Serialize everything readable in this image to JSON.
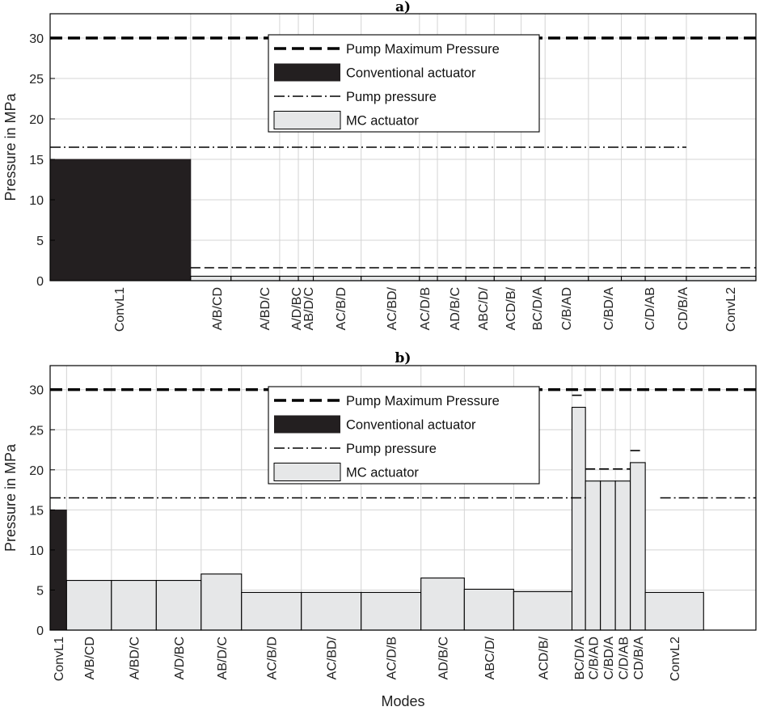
{
  "chart_data": [
    {
      "type": "bar",
      "title": "a)",
      "ylabel": "Pressure in MPa",
      "xlabel": "",
      "ylim": [
        0,
        33
      ],
      "yticks": [
        0,
        5,
        10,
        15,
        20,
        25,
        30
      ],
      "grid": true,
      "legend": {
        "placement": "top-center",
        "entries": [
          "Pump Maximum Pressure",
          "Conventional actuator",
          "Pump pressure",
          "MC actuator"
        ]
      },
      "colors": {
        "conventional": "#231f20",
        "mc": "#e6e7e8",
        "line": "#000000",
        "grid": "#d4d4d4"
      },
      "pump_maximum_pressure": 30,
      "pump_pressure": [
        {
          "x0": 0,
          "x1": 42.55,
          "y": 16.5
        }
      ],
      "categories": [
        "ConvL1",
        "A/B/CD",
        "A/BD/C",
        "A/D/BC",
        "AB/D/C",
        "AC/B/D",
        "AC/BD/",
        "AC/D/B",
        "AD/B/C",
        "ABC/D/",
        "ACD/B/",
        "BC/D/A",
        "C/B/AD",
        "C/BD/A",
        "C/D/AB",
        "CD/B/A",
        "ConvL2"
      ],
      "bars": [
        {
          "label": "ConvL1",
          "series": "Conventional actuator",
          "x0": 0,
          "x1": 9.4,
          "value": 15
        },
        {
          "label": "A/B/CD",
          "series": "MC actuator",
          "x0": 9.4,
          "x1": 12.1,
          "value": 0.55
        },
        {
          "label": "A/BD/C",
          "series": "MC actuator",
          "x0": 12.1,
          "x1": 15.35,
          "value": 0.55
        },
        {
          "label": "A/D/BC",
          "series": "MC actuator",
          "x0": 15.35,
          "x1": 16.6,
          "value": 0.55
        },
        {
          "label": "AB/D/C",
          "series": "MC actuator",
          "x0": 16.6,
          "x1": 17.6,
          "value": 0.55
        },
        {
          "label": "AC/B/D",
          "series": "MC actuator",
          "x0": 17.6,
          "x1": 20.8,
          "value": 0.55
        },
        {
          "label": "AC/BD/",
          "series": "MC actuator",
          "x0": 20.8,
          "x1": 24.7,
          "value": 0.55
        },
        {
          "label": "AC/D/B",
          "series": "MC actuator",
          "x0": 24.7,
          "x1": 25.9,
          "value": 0.55
        },
        {
          "label": "AD/B/C",
          "series": "MC actuator",
          "x0": 25.9,
          "x1": 27.8,
          "value": 0.55
        },
        {
          "label": "ABC/D/",
          "series": "MC actuator",
          "x0": 27.8,
          "x1": 29.7,
          "value": 0.55
        },
        {
          "label": "ACD/B/",
          "series": "MC actuator",
          "x0": 29.7,
          "x1": 31.5,
          "value": 0.55
        },
        {
          "label": "BC/D/A",
          "series": "MC actuator",
          "x0": 31.5,
          "x1": 33.1,
          "value": 0.55
        },
        {
          "label": "C/B/AD",
          "series": "MC actuator",
          "x0": 33.1,
          "x1": 36.0,
          "value": 0.55
        },
        {
          "label": "C/BD/A",
          "series": "MC actuator",
          "x0": 36.0,
          "x1": 38.2,
          "value": 0.55
        },
        {
          "label": "C/D/AB",
          "series": "MC actuator",
          "x0": 38.2,
          "x1": 39.8,
          "value": 0.55
        },
        {
          "label": "CD/B/A",
          "series": "MC actuator",
          "x0": 39.8,
          "x1": 42.55,
          "value": 0.55
        },
        {
          "label": "ConvL2",
          "series": "MC actuator",
          "x0": 42.55,
          "x1": 47.2,
          "value": 0.55
        }
      ],
      "mc_pressure_segments": [
        {
          "x0": 9.4,
          "x1": 47.2,
          "y": 1.6
        }
      ]
    },
    {
      "type": "bar",
      "title": "b)",
      "ylabel": "Pressure in MPa",
      "xlabel": "Modes",
      "ylim": [
        0,
        33
      ],
      "yticks": [
        0,
        5,
        10,
        15,
        20,
        25,
        30
      ],
      "grid": true,
      "legend": {
        "placement": "top-center",
        "entries": [
          "Pump Maximum Pressure",
          "Conventional actuator",
          "Pump pressure",
          "MC actuator"
        ]
      },
      "colors": {
        "conventional": "#231f20",
        "mc": "#e6e7e8",
        "line": "#000000",
        "grid": "#d4d4d4"
      },
      "pump_maximum_pressure": 30,
      "pump_pressure": [
        {
          "x0": 0,
          "x1": 35.8,
          "y": 16.5
        },
        {
          "x0": 40.8,
          "x1": 47.2,
          "y": 16.5
        }
      ],
      "categories": [
        "ConvL1",
        "A/B/CD",
        "A/BD/C",
        "A/D/BC",
        "AB/D/C",
        "AC/B/D",
        "AC/BD/",
        "AC/D/B",
        "AD/B/C",
        "ABC/D/",
        "ACD/B/",
        "BC/D/A",
        "C/B/AD",
        "C/BD/A",
        "C/D/AB",
        "CD/B/A",
        "ConvL2"
      ],
      "bars": [
        {
          "label": "ConvL1",
          "series": "Conventional actuator",
          "x0": 0,
          "x1": 1.1,
          "value": 15
        },
        {
          "label": "A/B/CD",
          "series": "MC actuator",
          "x0": 1.1,
          "x1": 4.1,
          "value": 6.2
        },
        {
          "label": "A/BD/C",
          "series": "MC actuator",
          "x0": 4.1,
          "x1": 7.1,
          "value": 6.2
        },
        {
          "label": "A/D/BC",
          "series": "MC actuator",
          "x0": 7.1,
          "x1": 10.1,
          "value": 6.2
        },
        {
          "label": "AB/D/C",
          "series": "MC actuator",
          "x0": 10.1,
          "x1": 12.8,
          "value": 7.0
        },
        {
          "label": "AC/B/D",
          "series": "MC actuator",
          "x0": 12.8,
          "x1": 16.8,
          "value": 4.7
        },
        {
          "label": "AC/BD/",
          "series": "MC actuator",
          "x0": 16.8,
          "x1": 20.8,
          "value": 4.7
        },
        {
          "label": "AC/D/B",
          "series": "MC actuator",
          "x0": 20.8,
          "x1": 24.8,
          "value": 4.7
        },
        {
          "label": "AD/B/C",
          "series": "MC actuator",
          "x0": 24.8,
          "x1": 27.7,
          "value": 6.5
        },
        {
          "label": "ABC/D/",
          "series": "MC actuator",
          "x0": 27.7,
          "x1": 31.0,
          "value": 5.1
        },
        {
          "label": "ACD/B/",
          "series": "MC actuator",
          "x0": 31.0,
          "x1": 34.9,
          "value": 4.8
        },
        {
          "label": "BC/D/A",
          "series": "MC actuator",
          "x0": 34.9,
          "x1": 35.8,
          "value": 27.8
        },
        {
          "label": "C/B/AD",
          "series": "MC actuator",
          "x0": 35.8,
          "x1": 36.8,
          "value": 18.6
        },
        {
          "label": "C/BD/A",
          "series": "MC actuator",
          "x0": 36.8,
          "x1": 37.8,
          "value": 18.6
        },
        {
          "label": "C/D/AB",
          "series": "MC actuator",
          "x0": 37.8,
          "x1": 38.8,
          "value": 18.6
        },
        {
          "label": "CD/B/A",
          "series": "MC actuator",
          "x0": 38.8,
          "x1": 39.8,
          "value": 20.9
        },
        {
          "label": "ConvL2",
          "series": "MC actuator",
          "x0": 39.8,
          "x1": 43.7,
          "value": 4.7
        }
      ],
      "mc_pressure_segments": [
        {
          "x0": 34.9,
          "x1": 35.6,
          "y": 29.3
        },
        {
          "x0": 35.8,
          "x1": 38.8,
          "y": 20.1
        },
        {
          "x0": 38.8,
          "x1": 39.5,
          "y": 22.4
        }
      ]
    }
  ]
}
